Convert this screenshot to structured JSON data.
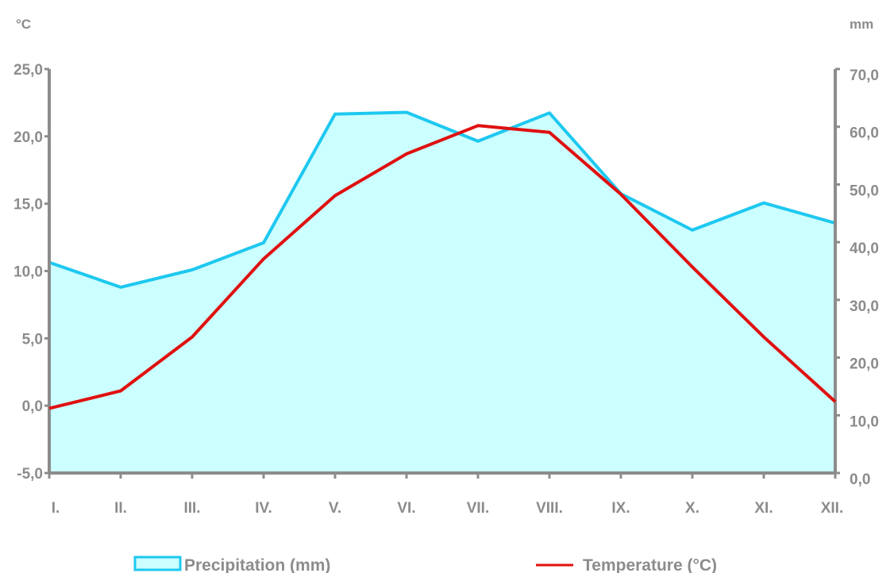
{
  "chart_data": {
    "type": "climate-diagram",
    "categories": [
      "I.",
      "II.",
      "III.",
      "IV.",
      "V.",
      "VI.",
      "VII.",
      "VIII.",
      "IX.",
      "X.",
      "XI.",
      "XII."
    ],
    "series": [
      {
        "name": "Precipitation (mm)",
        "chart_kind": "area",
        "axis": "right",
        "color": "#1ec8f0",
        "fill": "#ccffff",
        "values": [
          36.5,
          32.2,
          35.2,
          39.9,
          62.2,
          62.5,
          57.5,
          62.4,
          48.4,
          42.1,
          46.8,
          43.3
        ]
      },
      {
        "name": "Temperature (°C)",
        "chart_kind": "line",
        "axis": "left",
        "color": "#e01010",
        "values": [
          -0.2,
          1.1,
          5.1,
          10.9,
          15.6,
          18.7,
          20.8,
          20.3,
          15.7,
          10.3,
          5.1,
          0.3
        ]
      }
    ],
    "y_left": {
      "unit": "°C",
      "min": -5,
      "max": 25,
      "ticks": [
        "-5,0",
        "0,0",
        "5,0",
        "10,0",
        "15,0",
        "20,0",
        "25,0"
      ]
    },
    "y_right": {
      "unit": "mm",
      "min": 0,
      "max": 70,
      "ticks": [
        "0,0",
        "10,0",
        "20,0",
        "30,0",
        "40,0",
        "50,0",
        "60,0",
        "70,0"
      ]
    },
    "grid": false,
    "legend": "bottom"
  }
}
